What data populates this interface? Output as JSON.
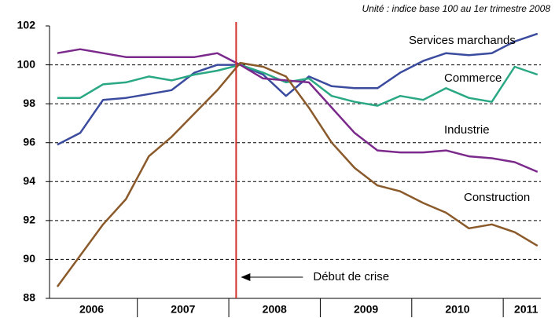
{
  "chart_data": {
    "type": "line",
    "subtitle": "Unité : indice base 100 au 1er trimestre 2008",
    "x": [
      2006.125,
      2006.375,
      2006.625,
      2006.875,
      2007.125,
      2007.375,
      2007.625,
      2007.875,
      2008.125,
      2008.375,
      2008.625,
      2008.875,
      2009.125,
      2009.375,
      2009.625,
      2009.875,
      2010.125,
      2010.375,
      2010.625,
      2010.875,
      2011.125,
      2011.375
    ],
    "xlim": [
      2006.04,
      2011.48
    ],
    "xticks": [
      {
        "value": 2006.5,
        "label": "2006"
      },
      {
        "value": 2007.5,
        "label": "2007"
      },
      {
        "value": 2008.5,
        "label": "2008"
      },
      {
        "value": 2009.5,
        "label": "2009"
      },
      {
        "value": 2010.5,
        "label": "2010"
      },
      {
        "value": 2011.25,
        "label": "2011"
      }
    ],
    "ylim": [
      88,
      102
    ],
    "yticks": [
      88,
      90,
      92,
      94,
      96,
      98,
      100,
      102
    ],
    "grid": true,
    "series": [
      {
        "name": "Services marchands",
        "color": "#3b4b9e",
        "values": [
          95.9,
          96.5,
          98.2,
          98.3,
          98.5,
          98.7,
          99.6,
          100.0,
          100.0,
          99.5,
          98.4,
          99.4,
          98.9,
          98.8,
          98.8,
          99.6,
          100.2,
          100.6,
          100.5,
          100.6,
          101.2,
          101.6
        ]
      },
      {
        "name": "Commerce",
        "color": "#2aa884",
        "values": [
          98.3,
          98.3,
          99.0,
          99.1,
          99.4,
          99.2,
          99.5,
          99.7,
          100.0,
          99.6,
          99.1,
          99.3,
          98.4,
          98.1,
          97.9,
          98.4,
          98.2,
          98.8,
          98.3,
          98.1,
          99.9,
          99.5
        ]
      },
      {
        "name": "Industrie",
        "color": "#7b2a8c",
        "values": [
          100.6,
          100.8,
          100.6,
          100.4,
          100.4,
          100.4,
          100.4,
          100.6,
          100.0,
          99.3,
          99.2,
          99.1,
          97.8,
          96.5,
          95.6,
          95.5,
          95.5,
          95.6,
          95.3,
          95.2,
          95.0,
          94.5
        ]
      },
      {
        "name": "Construction",
        "color": "#8b5a2b",
        "values": [
          88.6,
          90.2,
          91.8,
          93.1,
          95.3,
          96.3,
          97.5,
          98.7,
          100.1,
          99.9,
          99.4,
          97.8,
          96.0,
          94.7,
          93.8,
          93.5,
          92.9,
          92.4,
          91.6,
          91.8,
          91.4,
          90.7
        ]
      }
    ],
    "annotation": {
      "text": "Début de crise",
      "x": 2008.08,
      "color": "#d0312d"
    }
  }
}
